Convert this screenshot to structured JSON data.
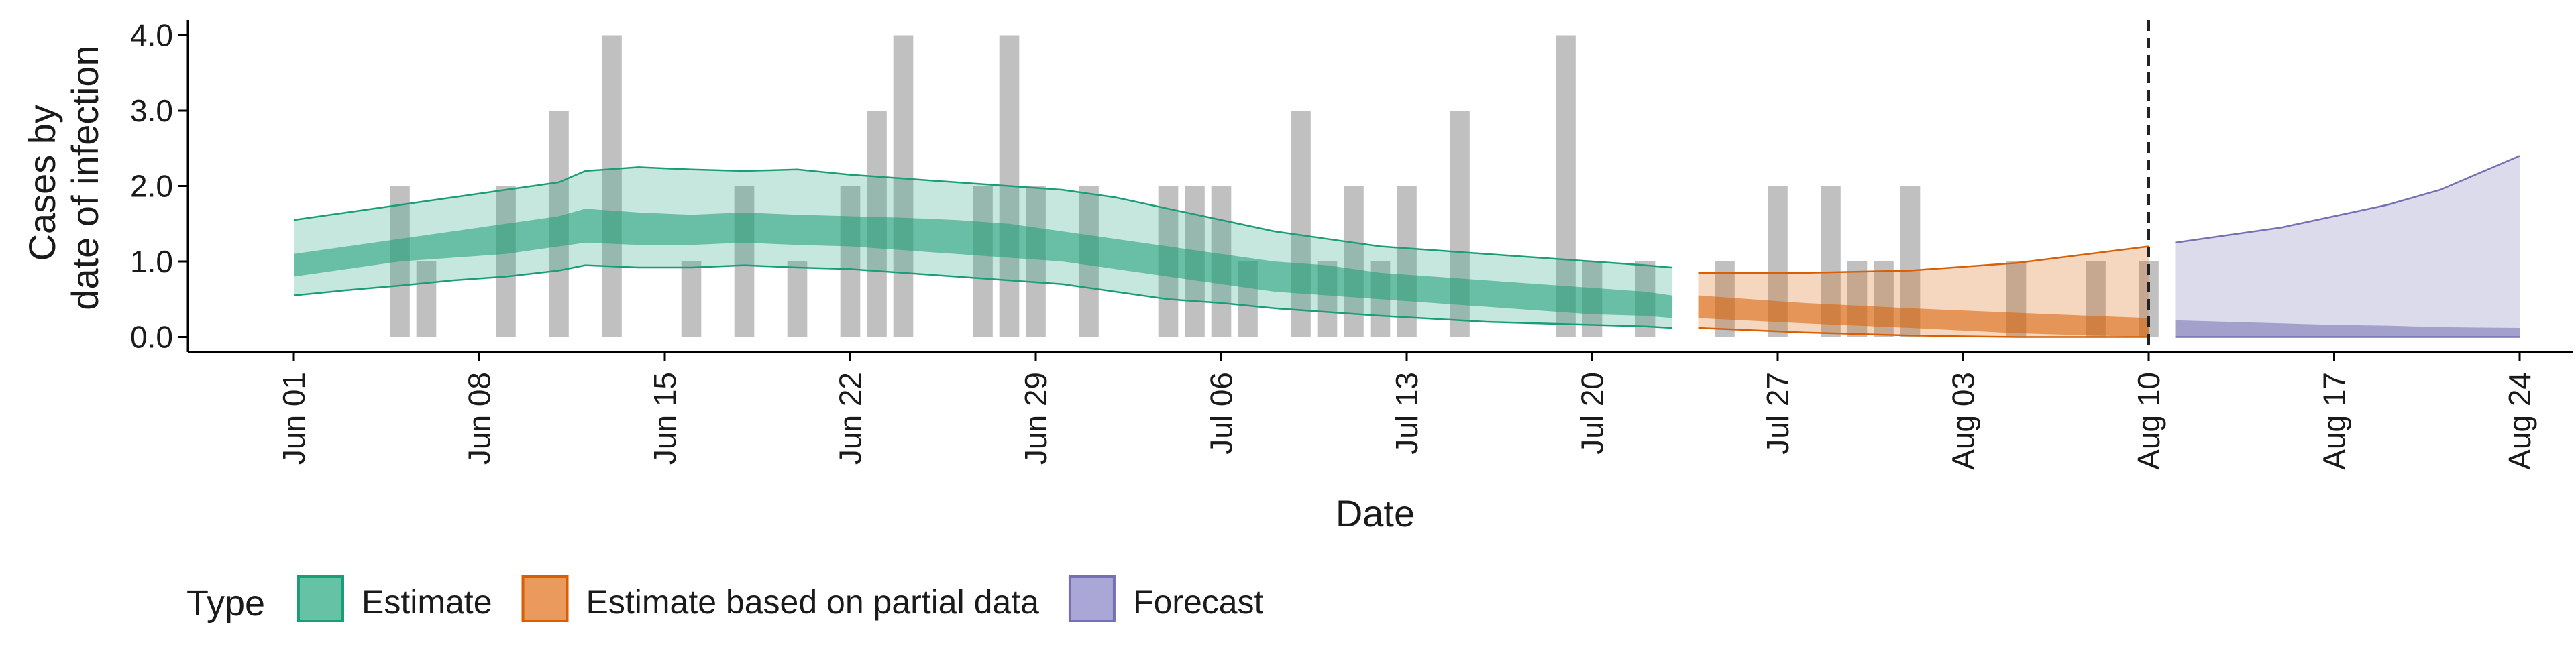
{
  "chart_data": {
    "type": "area",
    "xlabel": "Date",
    "ylabel_line1": "Cases by",
    "ylabel_line2": "date of infection",
    "x_range": [
      "2020-05-28",
      "2020-08-26"
    ],
    "ylim": [
      -0.2,
      4.2
    ],
    "y_ticks": [
      0.0,
      1.0,
      2.0,
      3.0,
      4.0
    ],
    "y_tick_labels": [
      "0.0",
      "1.0",
      "2.0",
      "3.0",
      "4.0"
    ],
    "x_ticks": [
      "2020-06-01",
      "2020-06-08",
      "2020-06-15",
      "2020-06-22",
      "2020-06-29",
      "2020-07-06",
      "2020-07-13",
      "2020-07-20",
      "2020-07-27",
      "2020-08-03",
      "2020-08-10",
      "2020-08-17",
      "2020-08-24"
    ],
    "x_tick_labels": [
      "Jun 01",
      "Jun 08",
      "Jun 15",
      "Jun 22",
      "Jun 29",
      "Jul 06",
      "Jul 13",
      "Jul 20",
      "Jul 27",
      "Aug 03",
      "Aug 10",
      "Aug 17",
      "Aug 24"
    ],
    "vline_date": "2020-08-10",
    "grid": false,
    "legend": {
      "position": "bottom",
      "title": "Type",
      "entries": [
        {
          "label": "Estimate",
          "fill": "#66c2a5",
          "stroke": "#1b9e77"
        },
        {
          "label": "Estimate based on partial data",
          "fill": "#ea9a5d",
          "stroke": "#d95f02"
        },
        {
          "label": "Forecast",
          "fill": "#aaa7d6",
          "stroke": "#7570b3"
        }
      ]
    },
    "reported_cases": {
      "color": "#bdbdbd",
      "dates": [
        "2020-06-05",
        "2020-06-06",
        "2020-06-09",
        "2020-06-11",
        "2020-06-13",
        "2020-06-16",
        "2020-06-18",
        "2020-06-20",
        "2020-06-22",
        "2020-06-23",
        "2020-06-24",
        "2020-06-27",
        "2020-06-28",
        "2020-06-29",
        "2020-07-01",
        "2020-07-04",
        "2020-07-05",
        "2020-07-06",
        "2020-07-07",
        "2020-07-09",
        "2020-07-10",
        "2020-07-11",
        "2020-07-12",
        "2020-07-13",
        "2020-07-15",
        "2020-07-19",
        "2020-07-20",
        "2020-07-22",
        "2020-07-25",
        "2020-07-27",
        "2020-07-29",
        "2020-07-30",
        "2020-07-31",
        "2020-08-01",
        "2020-08-05",
        "2020-08-08",
        "2020-08-10"
      ],
      "values": [
        2,
        1,
        2,
        3,
        4,
        1,
        2,
        1,
        2,
        3,
        4,
        2,
        4,
        2,
        2,
        2,
        2,
        2,
        1,
        3,
        1,
        2,
        1,
        2,
        3,
        4,
        1,
        1,
        1,
        2,
        2,
        1,
        1,
        2,
        1,
        1,
        1
      ]
    },
    "series": [
      {
        "name": "Estimate",
        "fill": "#1b9e77",
        "stroke": "#1b9e77",
        "dates": [
          "2020-06-01",
          "2020-06-03",
          "2020-06-05",
          "2020-06-07",
          "2020-06-09",
          "2020-06-11",
          "2020-06-12",
          "2020-06-14",
          "2020-06-16",
          "2020-06-18",
          "2020-06-20",
          "2020-06-22",
          "2020-06-24",
          "2020-06-26",
          "2020-06-28",
          "2020-06-30",
          "2020-07-02",
          "2020-07-04",
          "2020-07-06",
          "2020-07-08",
          "2020-07-10",
          "2020-07-12",
          "2020-07-14",
          "2020-07-16",
          "2020-07-18",
          "2020-07-20",
          "2020-07-22",
          "2020-07-23"
        ],
        "ci90_upper": [
          1.55,
          1.65,
          1.75,
          1.85,
          1.95,
          2.05,
          2.2,
          2.25,
          2.22,
          2.2,
          2.22,
          2.15,
          2.1,
          2.05,
          2.0,
          1.95,
          1.85,
          1.7,
          1.55,
          1.4,
          1.3,
          1.2,
          1.15,
          1.1,
          1.05,
          1.0,
          0.95,
          0.92
        ],
        "ci50_upper": [
          1.1,
          1.2,
          1.3,
          1.4,
          1.5,
          1.6,
          1.7,
          1.65,
          1.62,
          1.65,
          1.62,
          1.6,
          1.58,
          1.55,
          1.5,
          1.4,
          1.3,
          1.2,
          1.1,
          1.0,
          0.95,
          0.85,
          0.8,
          0.75,
          0.7,
          0.65,
          0.6,
          0.55
        ],
        "ci50_lower": [
          0.8,
          0.9,
          1.0,
          1.05,
          1.1,
          1.2,
          1.25,
          1.22,
          1.22,
          1.25,
          1.22,
          1.2,
          1.15,
          1.1,
          1.05,
          1.0,
          0.9,
          0.8,
          0.7,
          0.6,
          0.55,
          0.5,
          0.45,
          0.4,
          0.35,
          0.3,
          0.28,
          0.25
        ],
        "ci90_lower": [
          0.55,
          0.62,
          0.68,
          0.75,
          0.8,
          0.88,
          0.95,
          0.92,
          0.92,
          0.95,
          0.92,
          0.9,
          0.85,
          0.8,
          0.75,
          0.7,
          0.6,
          0.5,
          0.45,
          0.38,
          0.33,
          0.28,
          0.24,
          0.2,
          0.18,
          0.16,
          0.14,
          0.12
        ]
      },
      {
        "name": "Estimate based on partial data",
        "fill": "#d95f02",
        "stroke": "#d95f02",
        "dates": [
          "2020-07-24",
          "2020-07-28",
          "2020-08-01",
          "2020-08-05",
          "2020-08-10"
        ],
        "ci90_upper": [
          0.85,
          0.85,
          0.88,
          0.98,
          1.2
        ],
        "ci50_upper": [
          0.55,
          0.45,
          0.38,
          0.32,
          0.25
        ],
        "ci50_lower": [
          0.25,
          0.18,
          0.12,
          0.05,
          0.0
        ],
        "ci90_lower": [
          0.12,
          0.06,
          0.02,
          0.0,
          0.0
        ]
      },
      {
        "name": "Forecast",
        "fill": "#7570b3",
        "stroke": "#7570b3",
        "dates": [
          "2020-08-11",
          "2020-08-13",
          "2020-08-15",
          "2020-08-17",
          "2020-08-19",
          "2020-08-21",
          "2020-08-24"
        ],
        "ci90_upper": [
          1.25,
          1.35,
          1.45,
          1.6,
          1.75,
          1.95,
          2.4
        ],
        "ci50_upper": [
          0.22,
          0.2,
          0.18,
          0.16,
          0.15,
          0.13,
          0.12
        ],
        "ci50_lower": [
          0.0,
          0.0,
          0.0,
          0.0,
          0.0,
          0.0,
          0.0
        ],
        "ci90_lower": [
          0.0,
          0.0,
          0.0,
          0.0,
          0.0,
          0.0,
          0.0
        ]
      }
    ]
  }
}
